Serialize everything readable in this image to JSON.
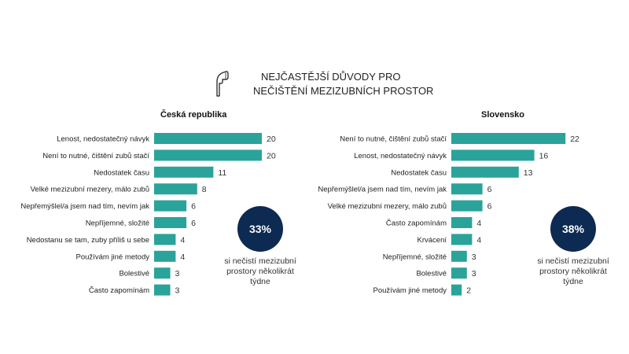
{
  "header": {
    "title_line1": "NEJČASTĚJŠÍ DŮVODY PRO",
    "title_line2": "NEČIŠTĚNÍ MEZIZUBNÍCH PROSTOR",
    "icon": "dental-floss-icon"
  },
  "colors": {
    "bar": "#2aa39a",
    "circle": "#0d2a52"
  },
  "czech": {
    "title": "Česká republika",
    "stat_value": "33%",
    "stat_text_1": "si nečistí mezizubní",
    "stat_text_2": "prostory několikrát",
    "stat_text_3": "týdne"
  },
  "slovak": {
    "title": "Slovensko",
    "stat_value": "38%",
    "stat_text_1": "si nečistí mezizubní",
    "stat_text_2": "prostory několikrát",
    "stat_text_3": "týdne"
  },
  "chart_data": [
    {
      "type": "bar",
      "orientation": "horizontal",
      "title": "Česká republika",
      "categories": [
        "Lenost, nedostatečný návyk",
        "Není to nutné, čištění zubů stačí",
        "Nedostatek času",
        "Velké mezizubní mezery, málo zubů",
        "Nepřemýšlel/a jsem nad tím, nevím jak",
        "Nepříjemné, složité",
        "Nedostanu se tam, zuby příliš u sebe",
        "Používám jiné metody",
        "Bolestivé",
        "Často zapomínám"
      ],
      "values": [
        20,
        20,
        11,
        8,
        6,
        6,
        4,
        4,
        3,
        3
      ]
    },
    {
      "type": "bar",
      "orientation": "horizontal",
      "title": "Slovensko",
      "categories": [
        "Není to nutné, čištění zubů stačí",
        "Lenost, nedostatečný návyk",
        "Nedostatek času",
        "Nepřemýšlel/a jsem nad tím, nevím jak",
        "Velké mezizubní mezery, málo zubů",
        "Často zapomínám",
        "Krvácení",
        "Nepříjemné, složité",
        "Bolestivé",
        "Používám jiné metody"
      ],
      "values": [
        22,
        16,
        13,
        6,
        6,
        4,
        4,
        3,
        3,
        2
      ]
    }
  ]
}
